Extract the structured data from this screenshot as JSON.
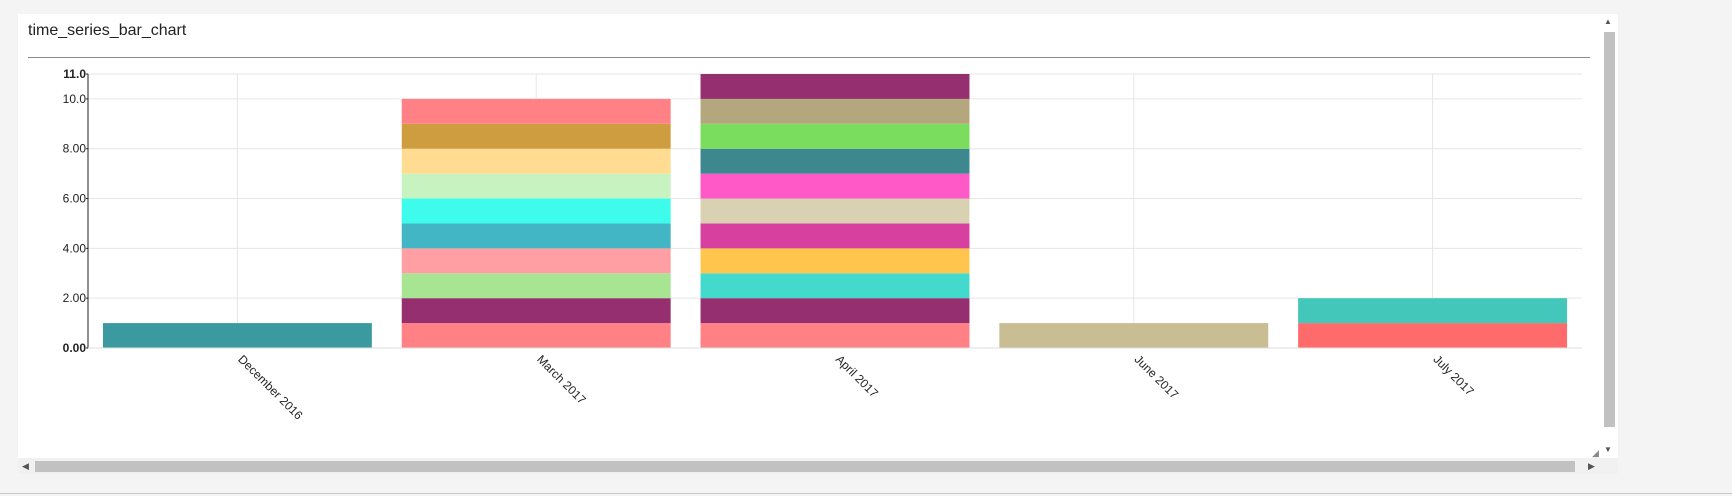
{
  "panel": {
    "title": "time_series_bar_chart"
  },
  "colors": {
    "bar_palette": {
      "teal": "#3a9aa0",
      "salmon": "#ff8186",
      "plum": "#962f6f",
      "lightgreen": "#a8e593",
      "pink": "#ff9fa3",
      "cerulean": "#42b6c5",
      "aqua": "#3dfcec",
      "palegreen": "#c7f3c1",
      "peach": "#ffdc91",
      "ochre": "#cd9d3f",
      "turquoise": "#43d9cd",
      "gold": "#ffc54c",
      "magenta": "#d840a0",
      "beige": "#d8d2b2",
      "hotpink": "#ff59c7",
      "darkteal": "#3d878f",
      "green": "#7bdd5e",
      "olive": "#b5a77d",
      "sand": "#c8bd93",
      "red": "#ff6b6b",
      "jade": "#43c7bb"
    },
    "grid": "#e6e6e6",
    "axis": "#222222"
  },
  "chart_data": {
    "type": "bar",
    "stacked": true,
    "categories": [
      "December 2016",
      "March 2017",
      "April 2017",
      "June 2017",
      "July 2017"
    ],
    "ylim": [
      0,
      11.0
    ],
    "yticks": [
      "0.00",
      "2.00",
      "4.00",
      "6.00",
      "8.00",
      "10.0",
      "11.0"
    ],
    "ytick_values": [
      0,
      2,
      4,
      6,
      8,
      10,
      11
    ],
    "grid": true,
    "legend": "none",
    "stacks": [
      {
        "category": "December 2016",
        "segments": [
          {
            "value": 1,
            "color": "#3a9aa0"
          }
        ]
      },
      {
        "category": "March 2017",
        "segments": [
          {
            "value": 1,
            "color": "#ff8186"
          },
          {
            "value": 1,
            "color": "#962f6f"
          },
          {
            "value": 1,
            "color": "#a8e593"
          },
          {
            "value": 1,
            "color": "#ff9fa3"
          },
          {
            "value": 1,
            "color": "#42b6c5"
          },
          {
            "value": 1,
            "color": "#3dfcec"
          },
          {
            "value": 1,
            "color": "#c7f3c1"
          },
          {
            "value": 1,
            "color": "#ffdc91"
          },
          {
            "value": 1,
            "color": "#cd9d3f"
          },
          {
            "value": 1,
            "color": "#ff8186"
          }
        ]
      },
      {
        "category": "April 2017",
        "segments": [
          {
            "value": 1,
            "color": "#ff8186"
          },
          {
            "value": 1,
            "color": "#962f6f"
          },
          {
            "value": 1,
            "color": "#43d9cd"
          },
          {
            "value": 1,
            "color": "#ffc54c"
          },
          {
            "value": 1,
            "color": "#d840a0"
          },
          {
            "value": 1,
            "color": "#d8d2b2"
          },
          {
            "value": 1,
            "color": "#ff59c7"
          },
          {
            "value": 1,
            "color": "#3d878f"
          },
          {
            "value": 1,
            "color": "#7bdd5e"
          },
          {
            "value": 1,
            "color": "#b5a77d"
          },
          {
            "value": 1,
            "color": "#962f6f"
          }
        ]
      },
      {
        "category": "June 2017",
        "segments": [
          {
            "value": 1,
            "color": "#c8bd93"
          }
        ]
      },
      {
        "category": "July 2017",
        "segments": [
          {
            "value": 1,
            "color": "#ff6b6b"
          },
          {
            "value": 1,
            "color": "#43c7bb"
          }
        ]
      }
    ]
  }
}
